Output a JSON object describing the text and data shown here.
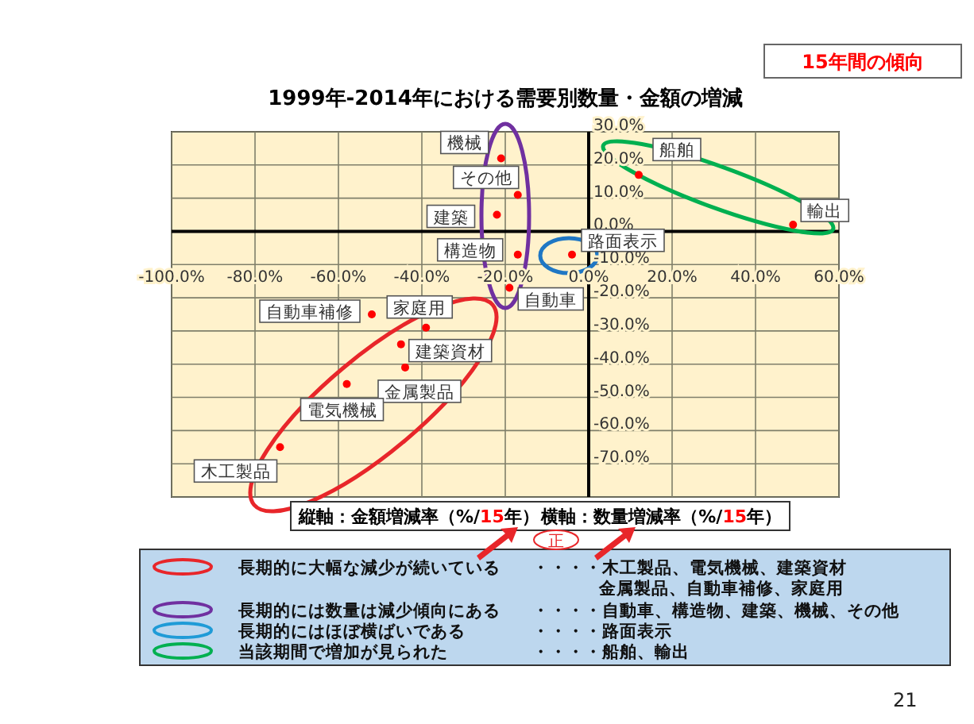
{
  "chart_data": {
    "type": "scatter",
    "title": "1999年-2014年における需要別数量・金額の増減",
    "subtitle": "15年間の傾向",
    "xlim": [
      -100,
      60
    ],
    "xticks": [
      {
        "value": -100,
        "label": "-100.0%"
      },
      {
        "value": -80,
        "label": "-80.0%"
      },
      {
        "value": -60,
        "label": "-60.0%"
      },
      {
        "value": -40,
        "label": "-40.0%"
      },
      {
        "value": -20,
        "label": "-20.0%"
      },
      {
        "value": 0,
        "label": "0.0%"
      },
      {
        "value": 20,
        "label": "20.0%"
      },
      {
        "value": 40,
        "label": "40.0%"
      },
      {
        "value": 60,
        "label": "60.0%"
      }
    ],
    "ylim": [
      -80,
      30
    ],
    "yticks": [
      {
        "value": -80,
        "label": null
      },
      {
        "value": -70,
        "label": "-70.0%"
      },
      {
        "value": -60,
        "label": "-60.0%"
      },
      {
        "value": -50,
        "label": "-50.0%"
      },
      {
        "value": -40,
        "label": "-40.0%"
      },
      {
        "value": -30,
        "label": "-30.0%"
      },
      {
        "value": -20,
        "label": "-20.0%"
      },
      {
        "value": -10,
        "label": "-10.0%"
      },
      {
        "value": 0,
        "label": "0.0%"
      },
      {
        "value": 10,
        "label": "10.0%"
      },
      {
        "value": 20,
        "label": "20.0%"
      },
      {
        "value": 30,
        "label": "30.0%"
      }
    ],
    "grid": true,
    "marker": "circle",
    "series": [
      {
        "name": "機械",
        "color": "#ff0000",
        "x": [
          -21
        ],
        "values": [
          22
        ]
      },
      {
        "name": "その他",
        "color": "#ff0000",
        "x": [
          -17
        ],
        "values": [
          11
        ]
      },
      {
        "name": "建築",
        "color": "#ff0000",
        "x": [
          -22
        ],
        "values": [
          5
        ]
      },
      {
        "name": "構造物",
        "color": "#ff0000",
        "x": [
          -17
        ],
        "values": [
          -7
        ]
      },
      {
        "name": "自動車",
        "color": "#ff0000",
        "x": [
          -19
        ],
        "values": [
          -17
        ]
      },
      {
        "name": "路面表示",
        "color": "#ff0000",
        "x": [
          -4
        ],
        "values": [
          -7
        ]
      },
      {
        "name": "船舶",
        "color": "#ff0000",
        "x": [
          12
        ],
        "values": [
          17
        ]
      },
      {
        "name": "輸出",
        "color": "#ff0000",
        "x": [
          49
        ],
        "values": [
          2
        ]
      },
      {
        "name": "自動車補修",
        "color": "#ff0000",
        "x": [
          -52
        ],
        "values": [
          -25
        ]
      },
      {
        "name": "家庭用",
        "color": "#ff0000",
        "x": [
          -39
        ],
        "values": [
          -29
        ]
      },
      {
        "name": "建築資材",
        "color": "#ff0000",
        "x": [
          -45
        ],
        "values": [
          -34
        ]
      },
      {
        "name": "金属製品",
        "color": "#ff0000",
        "x": [
          -44
        ],
        "values": [
          -41
        ]
      },
      {
        "name": "電気機械",
        "color": "#ff0000",
        "x": [
          -58
        ],
        "values": [
          -46
        ]
      },
      {
        "name": "木工製品",
        "color": "#ff0000",
        "x": [
          -74
        ],
        "values": [
          -65
        ]
      }
    ],
    "annotations": [
      "長期的に大幅な減少が続いている",
      "・・・・木工製品、電気機械、建築資材",
      "金属製品、自動車補修、家庭用",
      "長期的には数量は減少傾向にある",
      "・・・・自動車、構造物、建築、機械、その他",
      "長期的にはほぼ横ばいである",
      "・・・・路面表示",
      "当該期間で増加が見られた",
      "・・・・船舶、輸出",
      "正",
      "21",
      "縦軸：金額増減率（%/15年）",
      "横軸：数量増減率（%/15年）"
    ]
  }
}
